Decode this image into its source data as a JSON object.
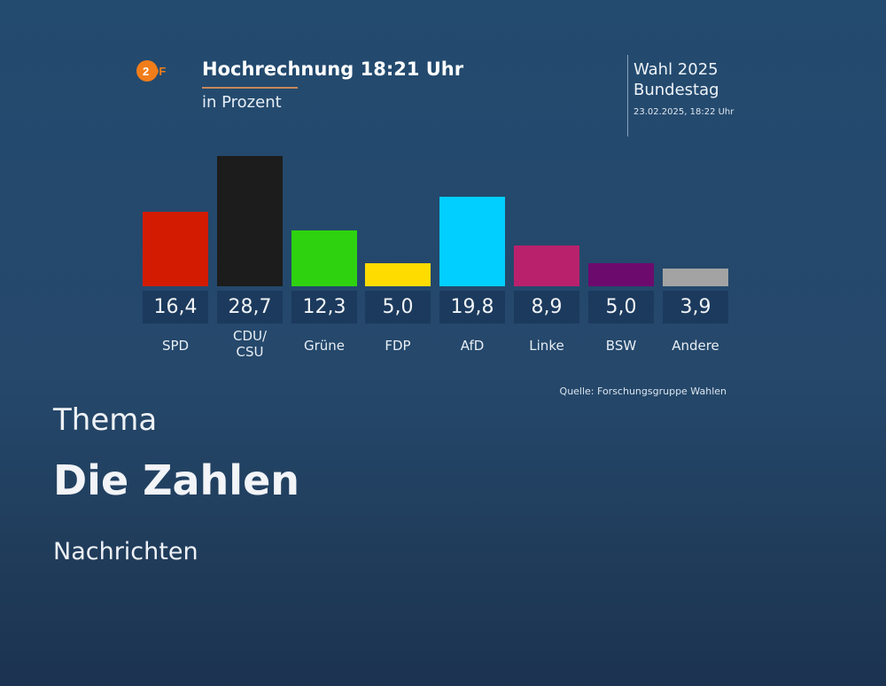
{
  "graphic": {
    "logo_text": "ZDF",
    "title": "Hochrechnung 18:21 Uhr",
    "subtitle": "in Prozent",
    "election_line1": "Wahl 2025",
    "election_line2": "Bundestag",
    "timestamp": "23.02.2025, 18:22 Uhr",
    "source": "Quelle: Forschungsgruppe Wahlen"
  },
  "chart_data": {
    "type": "bar",
    "title": "Hochrechnung 18:21 Uhr",
    "subtitle": "in Prozent",
    "categories": [
      "SPD",
      "CDU/\nCSU",
      "Grüne",
      "FDP",
      "AfD",
      "Linke",
      "BSW",
      "Andere"
    ],
    "values": [
      16.4,
      28.7,
      12.3,
      5.0,
      19.8,
      8.9,
      5.0,
      3.9
    ],
    "value_labels": [
      "16,4",
      "28,7",
      "12,3",
      "5,0",
      "19,8",
      "8,9",
      "5,0",
      "3,9"
    ],
    "colors": [
      "#d21b00",
      "#1c1c1c",
      "#2ed20f",
      "#ffdc00",
      "#00cfff",
      "#b9216d",
      "#6d0a6e",
      "#a3a3a3"
    ],
    "ylim": [
      0,
      28.7
    ],
    "grid": false,
    "legend": "none"
  },
  "content": {
    "label": "Thema",
    "heading": "Die Zahlen",
    "category": "Nachrichten"
  }
}
